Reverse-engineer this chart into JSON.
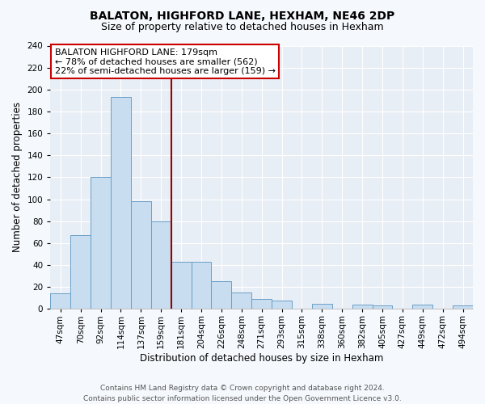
{
  "title": "BALATON, HIGHFORD LANE, HEXHAM, NE46 2DP",
  "subtitle": "Size of property relative to detached houses in Hexham",
  "xlabel": "Distribution of detached houses by size in Hexham",
  "ylabel": "Number of detached properties",
  "bar_labels": [
    "47sqm",
    "70sqm",
    "92sqm",
    "114sqm",
    "137sqm",
    "159sqm",
    "181sqm",
    "204sqm",
    "226sqm",
    "248sqm",
    "271sqm",
    "293sqm",
    "315sqm",
    "338sqm",
    "360sqm",
    "382sqm",
    "405sqm",
    "427sqm",
    "449sqm",
    "472sqm",
    "494sqm"
  ],
  "bar_heights": [
    14,
    67,
    120,
    193,
    98,
    80,
    43,
    43,
    25,
    15,
    9,
    8,
    0,
    5,
    0,
    4,
    3,
    0,
    4,
    0,
    3
  ],
  "bar_color": "#c8ddef",
  "bar_edge_color": "#6a9fc8",
  "vline_x": 6.0,
  "vline_color": "#990000",
  "annotation_title": "BALATON HIGHFORD LANE: 179sqm",
  "annotation_line1": "← 78% of detached houses are smaller (562)",
  "annotation_line2": "22% of semi-detached houses are larger (159) →",
  "annotation_box_facecolor": "#ffffff",
  "annotation_box_edgecolor": "#cc0000",
  "ylim": [
    0,
    240
  ],
  "yticks": [
    0,
    20,
    40,
    60,
    80,
    100,
    120,
    140,
    160,
    180,
    200,
    220,
    240
  ],
  "footer_line1": "Contains HM Land Registry data © Crown copyright and database right 2024.",
  "footer_line2": "Contains public sector information licensed under the Open Government Licence v3.0.",
  "fig_facecolor": "#f5f8fc",
  "plot_facecolor": "#e8eef5",
  "title_fontsize": 10,
  "subtitle_fontsize": 9,
  "axis_label_fontsize": 8.5,
  "tick_fontsize": 7.5,
  "annotation_fontsize": 8,
  "footer_fontsize": 6.5
}
